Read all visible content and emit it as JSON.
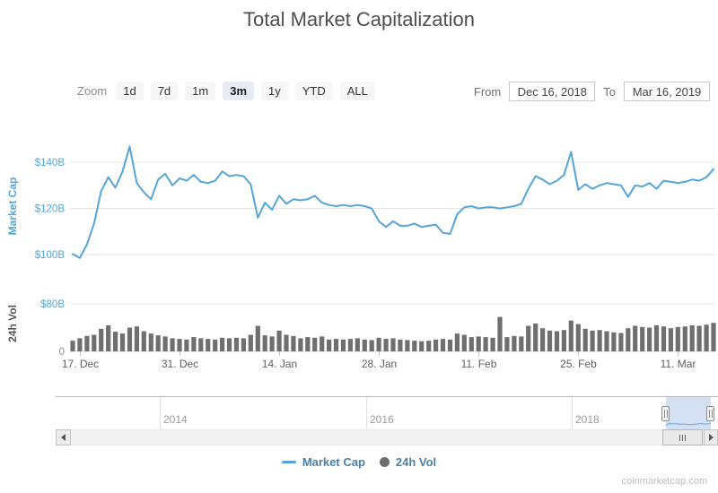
{
  "header": {
    "title": "Total Market Capitalization"
  },
  "toolbar": {
    "zoom_label": "Zoom",
    "zoom_buttons": [
      {
        "label": "1d",
        "selected": false
      },
      {
        "label": "7d",
        "selected": false
      },
      {
        "label": "1m",
        "selected": false
      },
      {
        "label": "3m",
        "selected": true
      },
      {
        "label": "1y",
        "selected": false
      },
      {
        "label": "YTD",
        "selected": false
      },
      {
        "label": "ALL",
        "selected": false
      }
    ],
    "from_label": "From",
    "from_value": "Dec 16, 2018",
    "to_label": "To",
    "to_value": "Mar 16, 2019"
  },
  "legend": {
    "items": [
      {
        "label": "Market Cap",
        "marker": "line",
        "color": "#55a5d8"
      },
      {
        "label": "24h Vol",
        "marker": "circle",
        "color": "#6e6e6e"
      }
    ]
  },
  "navigator": {
    "year_labels": [
      "2014",
      "2016",
      "2018"
    ]
  },
  "watermark": "coinmarketcap.com",
  "colors": {
    "line": "#55a5d8",
    "bars": "#6f6f6f",
    "grid": "#e4e4e4",
    "axis_line": "#ccd3dc",
    "tick_blue": "#55a5d8",
    "tick_gray": "#8c8c8c",
    "xtick_text": "#5f5f5f",
    "vol_title": "#555555"
  },
  "chart_data": [
    {
      "type": "line",
      "name": "Market Cap",
      "ylabel": "Market Cap",
      "units": "USD billions",
      "color": "#55a5d8",
      "ylim": [
        90,
        152
      ],
      "ytick_values": [
        100,
        120,
        140
      ],
      "ytick_labels": [
        "$100B",
        "$120B",
        "$140B"
      ],
      "xtick_labels": [
        "17. Dec",
        "31. Dec",
        "14. Jan",
        "28. Jan",
        "11. Feb",
        "25. Feb",
        "11. Mar"
      ],
      "xtick_indices": [
        1,
        15,
        29,
        43,
        57,
        71,
        85
      ],
      "x": [
        "Dec 16",
        "Dec 17",
        "Dec 18",
        "Dec 19",
        "Dec 20",
        "Dec 21",
        "Dec 22",
        "Dec 23",
        "Dec 24",
        "Dec 25",
        "Dec 26",
        "Dec 27",
        "Dec 28",
        "Dec 29",
        "Dec 30",
        "Dec 31",
        "Jan 1",
        "Jan 2",
        "Jan 3",
        "Jan 4",
        "Jan 5",
        "Jan 6",
        "Jan 7",
        "Jan 8",
        "Jan 9",
        "Jan 10",
        "Jan 11",
        "Jan 12",
        "Jan 13",
        "Jan 14",
        "Jan 15",
        "Jan 16",
        "Jan 17",
        "Jan 18",
        "Jan 19",
        "Jan 20",
        "Jan 21",
        "Jan 22",
        "Jan 23",
        "Jan 24",
        "Jan 25",
        "Jan 26",
        "Jan 27",
        "Jan 28",
        "Jan 29",
        "Jan 30",
        "Jan 31",
        "Feb 1",
        "Feb 2",
        "Feb 3",
        "Feb 4",
        "Feb 5",
        "Feb 6",
        "Feb 7",
        "Feb 8",
        "Feb 9",
        "Feb 10",
        "Feb 11",
        "Feb 12",
        "Feb 13",
        "Feb 14",
        "Feb 15",
        "Feb 16",
        "Feb 17",
        "Feb 18",
        "Feb 19",
        "Feb 20",
        "Feb 21",
        "Feb 22",
        "Feb 23",
        "Feb 24",
        "Feb 25",
        "Feb 26",
        "Feb 27",
        "Feb 28",
        "Mar 1",
        "Mar 2",
        "Mar 3",
        "Mar 4",
        "Mar 5",
        "Mar 6",
        "Mar 7",
        "Mar 8",
        "Mar 9",
        "Mar 10",
        "Mar 11",
        "Mar 12",
        "Mar 13",
        "Mar 14",
        "Mar 15",
        "Mar 16"
      ],
      "values": [
        100.3,
        98.6,
        104.5,
        113.5,
        127.5,
        133.5,
        129,
        136,
        146.8,
        131,
        127,
        124,
        132.5,
        135,
        130,
        133,
        132,
        134.5,
        131.5,
        131,
        132,
        136,
        134,
        134.5,
        134,
        130.5,
        116,
        122.5,
        119.5,
        125.5,
        122,
        124,
        123.5,
        124,
        125.5,
        122.5,
        121.5,
        121,
        121.5,
        121,
        121.5,
        121,
        120,
        114.5,
        112,
        114.5,
        112.5,
        112.5,
        113.5,
        112,
        112.5,
        113,
        109.5,
        109,
        117.5,
        120.5,
        121,
        120,
        120.5,
        120.5,
        120,
        120.5,
        121,
        122,
        128.5,
        134,
        132.5,
        130.5,
        132,
        134.5,
        144.5,
        128,
        130.5,
        128.5,
        130,
        131,
        130.5,
        130,
        125,
        130,
        129.5,
        131,
        128.5,
        132,
        131.5,
        131,
        131.5,
        132.5,
        132,
        133.5,
        137
      ]
    },
    {
      "type": "bar",
      "name": "24h Vol",
      "ylabel": "24h Vol",
      "units": "USD billions",
      "color": "#6f6f6f",
      "ylim": [
        0,
        93.6
      ],
      "ytick_values": [
        0,
        80
      ],
      "ytick_labels": [
        "0",
        "$80B"
      ],
      "values": [
        18,
        22,
        26,
        28,
        38,
        44,
        33,
        30,
        40,
        42,
        34,
        30,
        27,
        25,
        22,
        21,
        20,
        24,
        22,
        21,
        20,
        23,
        22,
        23,
        22,
        28,
        43,
        27,
        25,
        35,
        28,
        26,
        22,
        24,
        23,
        25,
        20,
        21,
        20,
        21,
        22,
        20,
        19,
        23,
        21,
        22,
        20,
        19,
        18,
        17,
        18,
        20,
        21,
        20,
        30,
        28,
        24,
        25,
        24,
        23,
        58,
        24,
        26,
        25,
        43,
        47,
        39,
        35,
        34,
        36,
        52,
        46,
        38,
        35,
        36,
        34,
        32,
        31,
        39,
        43,
        41,
        40,
        44,
        42,
        39,
        41,
        42,
        44,
        43,
        45,
        48
      ]
    }
  ]
}
